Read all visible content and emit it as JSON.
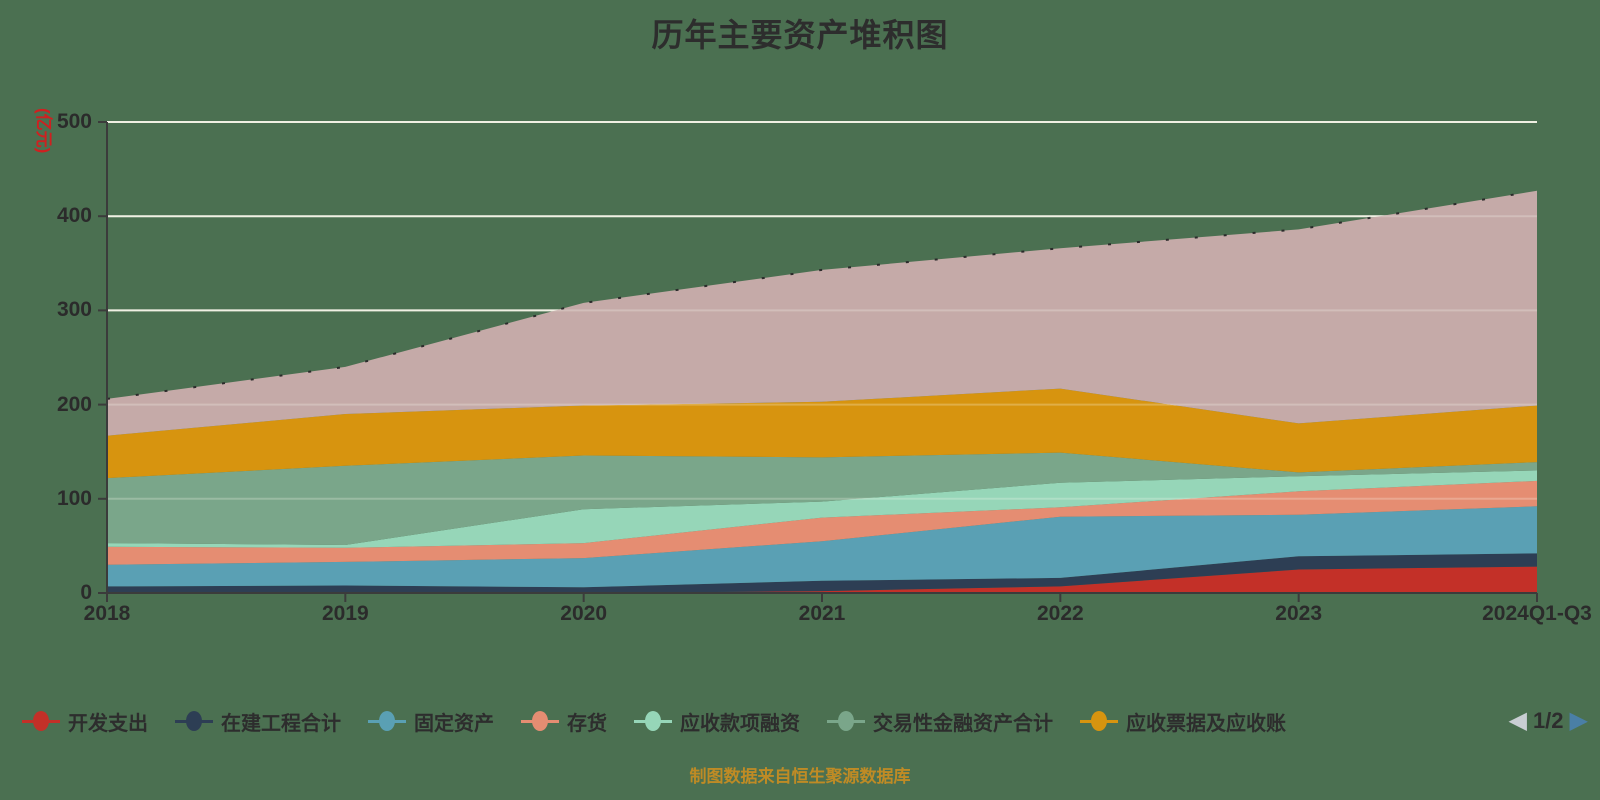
{
  "header": {
    "title": "历年主要资产堆积图"
  },
  "axes": {
    "y": {
      "unit": "(亿元)",
      "ticks": [
        0,
        100,
        200,
        300,
        400,
        500
      ]
    },
    "x": {
      "labels": [
        "2018",
        "2019",
        "2020",
        "2021",
        "2022",
        "2023",
        "2024Q1-Q3"
      ]
    }
  },
  "legend": {
    "items": [
      {
        "label": "开发支出",
        "color": "#c33028"
      },
      {
        "label": "在建工程合计",
        "color": "#2d3e54"
      },
      {
        "label": "固定资产",
        "color": "#5aa0b4"
      },
      {
        "label": "存货",
        "color": "#e58d72"
      },
      {
        "label": "应收款项融资",
        "color": "#96d6b8"
      },
      {
        "label": "交易性金融资产合计",
        "color": "#7aa68a"
      },
      {
        "label": "应收票据及应收账",
        "color": "#d7940f"
      }
    ],
    "pagination": {
      "page": "1/2",
      "prev_color": "#c9ced3",
      "next_color": "#4a7fa6"
    }
  },
  "footer": {
    "source_note": "制图数据来自恒生聚源数据库"
  },
  "colors": {
    "background": "#4b7051",
    "gridline": "#ececdf",
    "axis": "#3b3b3b",
    "title_text": "#2d2d2d",
    "y_unit_text": "#cf2020",
    "footer_text": "#bf8b25"
  },
  "chart_data": {
    "type": "area",
    "stacked": true,
    "title": "历年主要资产堆积图",
    "ylabel": "(亿元)",
    "ylim": [
      0,
      500
    ],
    "grid": true,
    "legend_position": "bottom",
    "categories": [
      "2018",
      "2019",
      "2020",
      "2021",
      "2022",
      "2023",
      "2024Q1-Q3"
    ],
    "series": [
      {
        "name": "开发支出",
        "color": "#c33028",
        "values": [
          0,
          0,
          0,
          2,
          7,
          25,
          28
        ]
      },
      {
        "name": "在建工程合计",
        "color": "#2d3e54",
        "values": [
          7,
          8,
          6,
          11,
          9,
          14,
          14
        ]
      },
      {
        "name": "固定资产",
        "color": "#5aa0b4",
        "values": [
          23,
          25,
          31,
          42,
          65,
          44,
          50
        ]
      },
      {
        "name": "存货",
        "color": "#e58d72",
        "values": [
          19,
          15,
          16,
          25,
          10,
          25,
          27
        ]
      },
      {
        "name": "应收款项融资",
        "color": "#96d6b8",
        "values": [
          4,
          3,
          36,
          17,
          26,
          16,
          11
        ]
      },
      {
        "name": "交易性金融资产合计",
        "color": "#7aa68a",
        "values": [
          69,
          84,
          57,
          47,
          32,
          4,
          9
        ]
      },
      {
        "name": "应收票据及应收账",
        "color": "#d7940f",
        "values": [
          45,
          55,
          53,
          59,
          68,
          52,
          60
        ]
      },
      {
        "name": "",
        "color": "#c5aaa8",
        "values": [
          39,
          50,
          109,
          140,
          149,
          206,
          228
        ]
      }
    ]
  }
}
